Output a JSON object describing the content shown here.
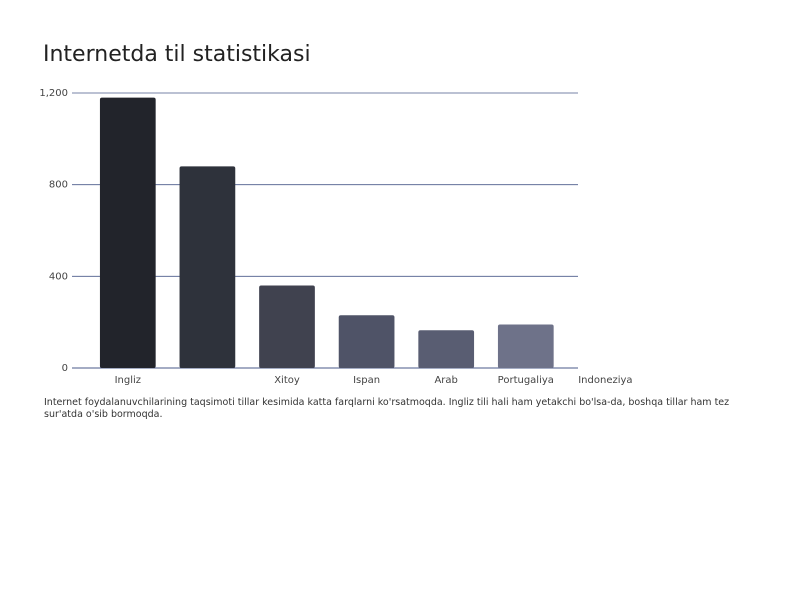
{
  "chart_data": {
    "type": "bar",
    "title": "Internetda til statistikasi",
    "categories": [
      "Ingliz",
      null,
      "Xitoy",
      "Ispan",
      "Arab",
      "Portugaliya",
      "Indoneziya"
    ],
    "values": [
      1180,
      880,
      360,
      230,
      165,
      190,
      null
    ],
    "colors": [
      "#22242b",
      "#2e323b",
      "#40424f",
      "#4f5367",
      "#595d72",
      "#6e7289",
      "#7a7f96"
    ],
    "ylim": [
      0,
      1200
    ],
    "yticks": [
      0,
      400,
      800,
      {
        "value": 1200,
        "label": "1,200"
      }
    ],
    "grid": true,
    "description": "Internet foydalanuvchilarining taqsimoti tillar kesimida katta farqlarni ko'rsatmoqda. Ingliz tili hali ham yetakchi bo'lsa-da, boshqa tillar ham tez sur'atda o'sib bormoqda."
  }
}
